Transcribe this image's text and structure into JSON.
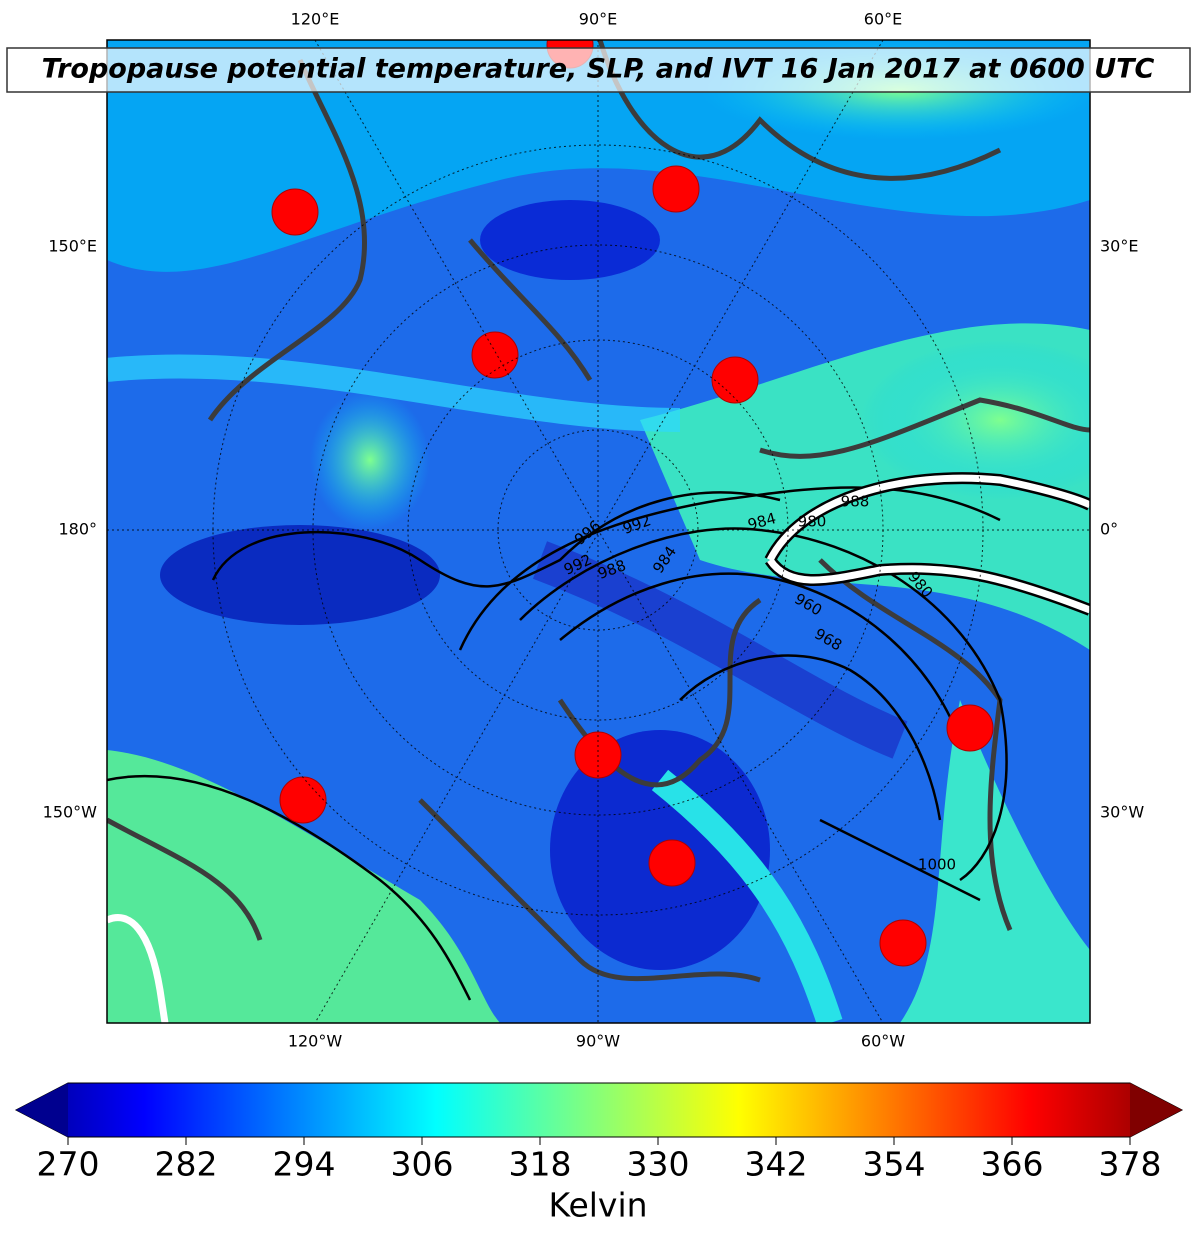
{
  "title": "Tropopause potential temperature, SLP, and IVT 16 Jan 2017 at 0600 UTC",
  "map": {
    "top_labels": [
      "120°E",
      "90°E",
      "60°E"
    ],
    "bottom_labels": [
      "120°W",
      "90°W",
      "60°W"
    ],
    "left_labels": [
      "150°E",
      "180°",
      "150°W"
    ],
    "right_labels": [
      "30°E",
      "0°",
      "30°W"
    ],
    "isobar_labels": [
      "996",
      "992",
      "992",
      "988",
      "984",
      "984",
      "980",
      "988",
      "980",
      "968",
      "960",
      "1000"
    ]
  },
  "colorbar": {
    "lim": [
      270,
      378
    ],
    "ticks": [
      270,
      282,
      294,
      306,
      318,
      330,
      342,
      354,
      366,
      378
    ],
    "label": "Kelvin"
  }
}
